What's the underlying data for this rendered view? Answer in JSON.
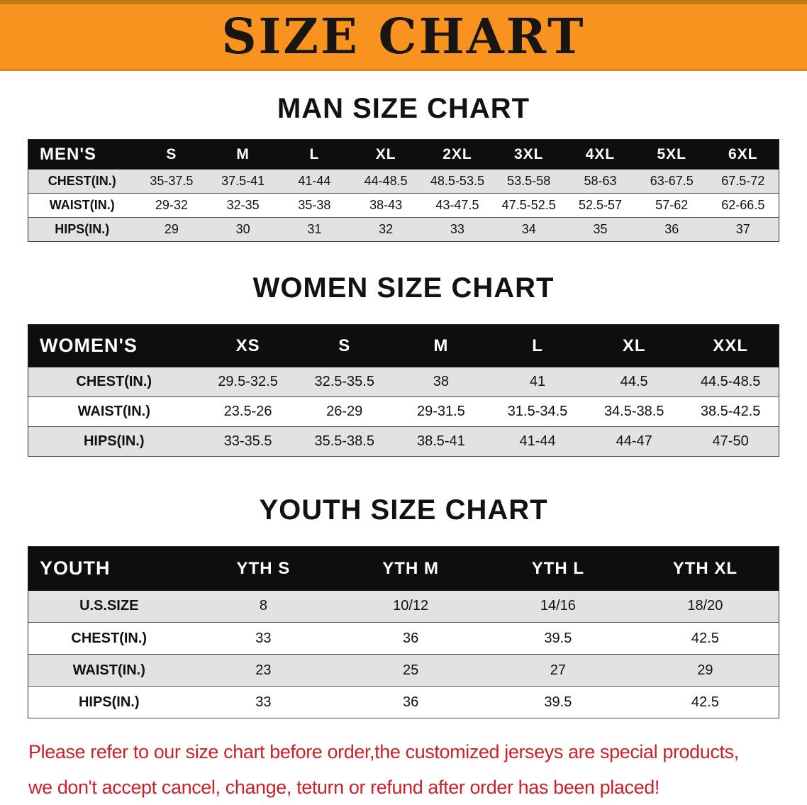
{
  "banner": {
    "title": "SIZE CHART",
    "bg_color": "#f7931e"
  },
  "sections": [
    {
      "id": "men",
      "heading": "MAN SIZE CHART",
      "table": {
        "header": [
          "MEN'S",
          "S",
          "M",
          "L",
          "XL",
          "2XL",
          "3XL",
          "4XL",
          "5XL",
          "6XL"
        ],
        "rows": [
          [
            "CHEST(IN.)",
            "35-37.5",
            "37.5-41",
            "41-44",
            "44-48.5",
            "48.5-53.5",
            "53.5-58",
            "58-63",
            "63-67.5",
            "67.5-72"
          ],
          [
            "WAIST(IN.)",
            "29-32",
            "32-35",
            "35-38",
            "38-43",
            "43-47.5",
            "47.5-52.5",
            "52.5-57",
            "57-62",
            "62-66.5"
          ],
          [
            "HIPS(IN.)",
            "29",
            "30",
            "31",
            "32",
            "33",
            "34",
            "35",
            "36",
            "37"
          ]
        ]
      }
    },
    {
      "id": "women",
      "heading": "WOMEN SIZE CHART",
      "table": {
        "header": [
          "WOMEN'S",
          "XS",
          "S",
          "M",
          "L",
          "XL",
          "XXL"
        ],
        "rows": [
          [
            "CHEST(IN.)",
            "29.5-32.5",
            "32.5-35.5",
            "38",
            "41",
            "44.5",
            "44.5-48.5"
          ],
          [
            "WAIST(IN.)",
            "23.5-26",
            "26-29",
            "29-31.5",
            "31.5-34.5",
            "34.5-38.5",
            "38.5-42.5"
          ],
          [
            "HIPS(IN.)",
            "33-35.5",
            "35.5-38.5",
            "38.5-41",
            "41-44",
            "44-47",
            "47-50"
          ]
        ]
      }
    },
    {
      "id": "youth",
      "heading": "YOUTH SIZE CHART",
      "table": {
        "header": [
          "YOUTH",
          "YTH S",
          "YTH M",
          "YTH L",
          "YTH XL"
        ],
        "rows": [
          [
            "U.S.SIZE",
            "8",
            "10/12",
            "14/16",
            "18/20"
          ],
          [
            "CHEST(IN.)",
            "33",
            "36",
            "39.5",
            "42.5"
          ],
          [
            "WAIST(IN.)",
            "23",
            "25",
            "27",
            "29"
          ],
          [
            "HIPS(IN.)",
            "33",
            "36",
            "39.5",
            "42.5"
          ]
        ]
      }
    }
  ],
  "disclaimer": {
    "lines": [
      "Please refer to our size chart before order,the customized jerseys are special products,",
      "we don't accept cancel, change, teturn or refund after order has been placed!"
    ],
    "text_color": "#cb2127"
  }
}
